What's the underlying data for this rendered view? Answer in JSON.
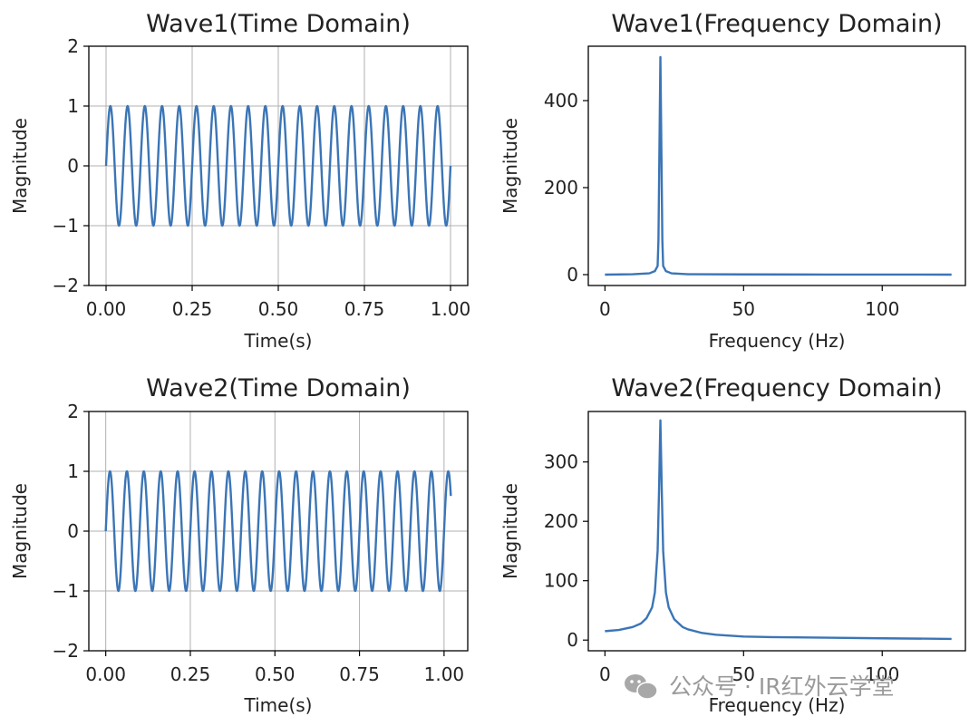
{
  "colors": {
    "line": "#3b75b6",
    "watermark": "#9a9a9a"
  },
  "watermark": {
    "text": "公众号 · IR红外云学堂",
    "icon": "wechat-icon"
  },
  "chart_data": [
    {
      "id": "wave1-time",
      "type": "line",
      "title": "Wave1(Time Domain)",
      "xlabel": "Time(s)",
      "ylabel": "Magnitude",
      "xlim": [
        -0.05,
        1.05
      ],
      "ylim": [
        -2,
        2
      ],
      "grid": true,
      "xticks": [
        0,
        0.25,
        0.5,
        0.75,
        1.0
      ],
      "xtick_labels": [
        "0.00",
        "0.25",
        "0.50",
        "0.75",
        "1.00"
      ],
      "yticks": [
        -2,
        -1,
        0,
        1,
        2
      ],
      "ytick_labels": [
        "−2",
        "−1",
        "0",
        "1",
        "2"
      ],
      "series": [
        {
          "name": "wave1",
          "function": "sine",
          "amplitude": 1,
          "frequency_hz": 20,
          "t_start": 0,
          "t_end": 1.0
        }
      ]
    },
    {
      "id": "wave1-freq",
      "type": "line",
      "title": "Wave1(Frequency Domain)",
      "xlabel": "Frequency (Hz)",
      "ylabel": "Magnitude",
      "xlim": [
        -6,
        130
      ],
      "ylim": [
        -25,
        525
      ],
      "grid": false,
      "xticks": [
        0,
        50,
        100
      ],
      "xtick_labels": [
        "0",
        "50",
        "100"
      ],
      "yticks": [
        0,
        200,
        400
      ],
      "ytick_labels": [
        "0",
        "200",
        "400"
      ],
      "series": [
        {
          "name": "wave1-spectrum",
          "x": [
            0,
            10,
            16,
            18,
            19,
            19.3,
            20,
            20.7,
            21,
            22,
            24,
            30,
            50,
            80,
            125
          ],
          "y": [
            0,
            1,
            3,
            8,
            20,
            80,
            500,
            80,
            20,
            8,
            3,
            1,
            0.5,
            0.2,
            0
          ]
        }
      ]
    },
    {
      "id": "wave2-time",
      "type": "line",
      "title": "Wave2(Time Domain)",
      "xlabel": "Time(s)",
      "ylabel": "Magnitude",
      "xlim": [
        -0.05,
        1.07
      ],
      "ylim": [
        -2,
        2
      ],
      "grid": true,
      "xticks": [
        0,
        0.25,
        0.5,
        0.75,
        1.0
      ],
      "xtick_labels": [
        "0.00",
        "0.25",
        "0.50",
        "0.75",
        "1.00"
      ],
      "yticks": [
        -2,
        -1,
        0,
        1,
        2
      ],
      "ytick_labels": [
        "−2",
        "−1",
        "0",
        "1",
        "2"
      ],
      "series": [
        {
          "name": "wave2",
          "function": "sine",
          "amplitude": 1,
          "frequency_hz": 20,
          "t_start": 0,
          "t_end": 1.02
        }
      ]
    },
    {
      "id": "wave2-freq",
      "type": "line",
      "title": "Wave2(Frequency Domain)",
      "xlabel": "Frequency (Hz)",
      "ylabel": "Magnitude",
      "xlim": [
        -6,
        130
      ],
      "ylim": [
        -18,
        385
      ],
      "grid": false,
      "xticks": [
        0,
        50,
        100
      ],
      "xtick_labels": [
        "0",
        "50",
        "100"
      ],
      "yticks": [
        0,
        100,
        200,
        300
      ],
      "ytick_labels": [
        "0",
        "100",
        "200",
        "300"
      ],
      "series": [
        {
          "name": "wave2-spectrum",
          "x": [
            0,
            5,
            10,
            13,
            15,
            17,
            18,
            19,
            19.5,
            20,
            20.5,
            21,
            22,
            23,
            25,
            28,
            30,
            35,
            40,
            50,
            60,
            80,
            100,
            125
          ],
          "y": [
            15,
            17,
            22,
            28,
            37,
            55,
            80,
            150,
            250,
            370,
            250,
            150,
            80,
            55,
            35,
            22,
            18,
            12,
            9,
            6,
            5,
            4,
            3,
            2
          ]
        }
      ]
    }
  ]
}
